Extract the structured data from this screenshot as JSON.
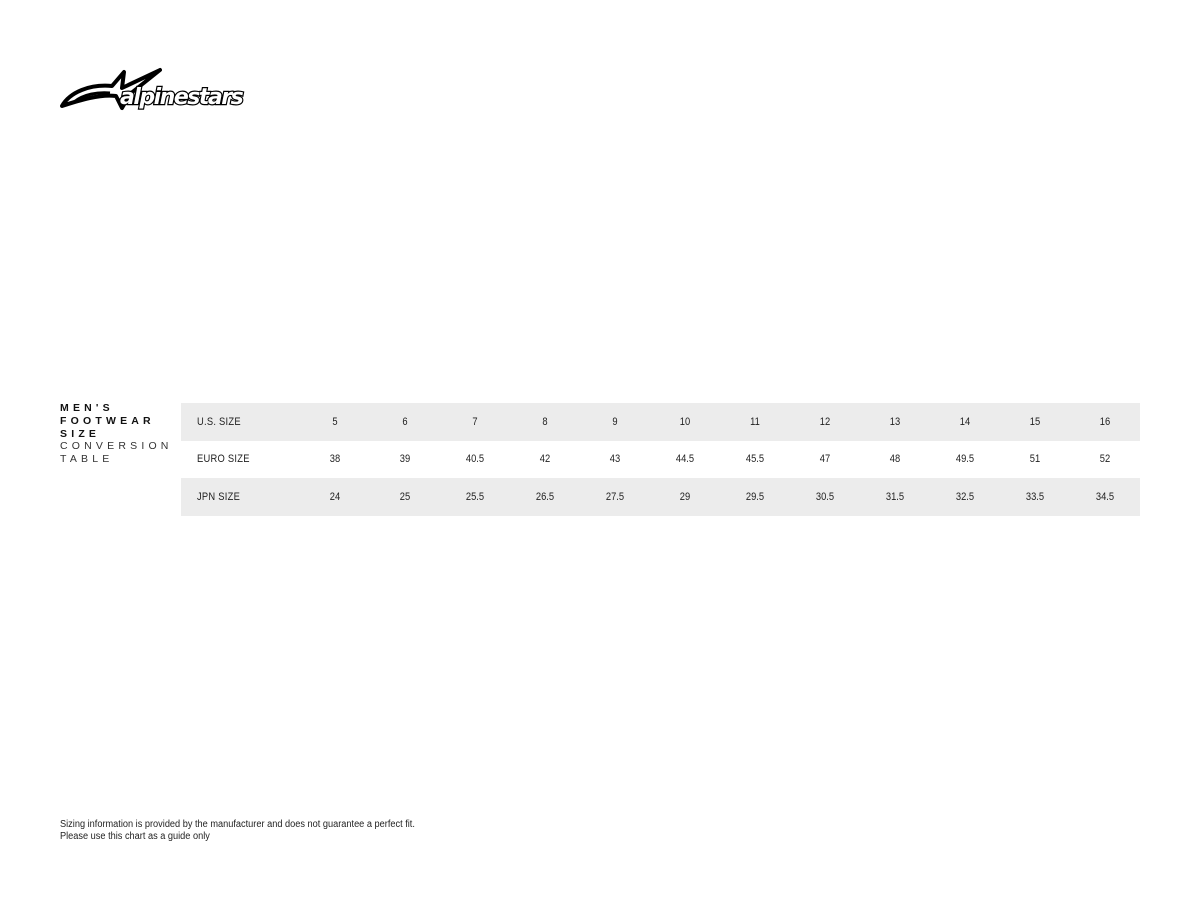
{
  "brand": {
    "logo_text": "alpinestars"
  },
  "title": {
    "line1": "MEN'S",
    "line2": "FOOTWEAR",
    "line3": "SIZE",
    "line4": "CONVERSION",
    "line5": "TABLE"
  },
  "table": {
    "rows": [
      {
        "label": "U.S. SIZE",
        "values": [
          "5",
          "6",
          "7",
          "8",
          "9",
          "10",
          "11",
          "12",
          "13",
          "14",
          "15",
          "16"
        ]
      },
      {
        "label": "EURO SIZE",
        "values": [
          "38",
          "39",
          "40.5",
          "42",
          "43",
          "44.5",
          "45.5",
          "47",
          "48",
          "49.5",
          "51",
          "52"
        ]
      },
      {
        "label": "JPN SIZE",
        "values": [
          "24",
          "25",
          "25.5",
          "26.5",
          "27.5",
          "29",
          "29.5",
          "30.5",
          "31.5",
          "32.5",
          "33.5",
          "34.5"
        ]
      }
    ]
  },
  "footer": {
    "line1": "Sizing information is provided by the manufacturer and does not guarantee a perfect fit.",
    "line2": "Please use this chart as a guide only"
  }
}
